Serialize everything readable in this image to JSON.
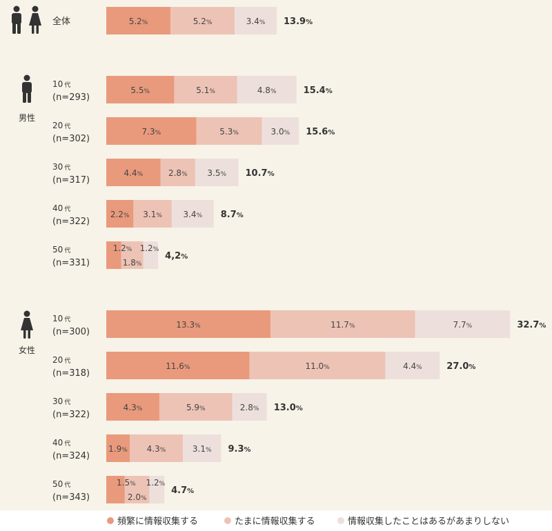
{
  "chart_data": {
    "type": "bar",
    "orientation": "horizontal",
    "stacked": true,
    "series": [
      {
        "name": "頻繁に情報収集する",
        "color": "#e99a7c"
      },
      {
        "name": "たまに情報収集する",
        "color": "#edc3b5"
      },
      {
        "name": "情報収集したことはあるがあまりしない",
        "color": "#ede0dc"
      }
    ],
    "groups": [
      {
        "label": "",
        "icon": "male-female-icon",
        "rows": [
          {
            "label": "全体",
            "n": "",
            "values": [
              5.2,
              5.2,
              3.4
            ],
            "total": "13.9"
          }
        ]
      },
      {
        "label": "男性",
        "icon": "male-icon",
        "rows": [
          {
            "label": "10代",
            "n": "(n=293)",
            "values": [
              5.5,
              5.1,
              4.8
            ],
            "total": "15.4"
          },
          {
            "label": "20代",
            "n": "(n=302)",
            "values": [
              7.3,
              5.3,
              3.0
            ],
            "total": "15.6"
          },
          {
            "label": "30代",
            "n": "(n=317)",
            "values": [
              4.4,
              2.8,
              3.5
            ],
            "total": "10.7"
          },
          {
            "label": "40代",
            "n": "(n=322)",
            "values": [
              2.2,
              3.1,
              3.4
            ],
            "total": "8.7"
          },
          {
            "label": "50代",
            "n": "(n=331)",
            "values": [
              1.2,
              1.8,
              1.2
            ],
            "total": "4,2"
          }
        ]
      },
      {
        "label": "女性",
        "icon": "female-icon",
        "rows": [
          {
            "label": "10代",
            "n": "(n=300)",
            "values": [
              13.3,
              11.7,
              7.7
            ],
            "total": "32.7"
          },
          {
            "label": "20代",
            "n": "(n=318)",
            "values": [
              11.6,
              11.0,
              4.4
            ],
            "total": "27.0"
          },
          {
            "label": "30代",
            "n": "(n=322)",
            "values": [
              4.3,
              5.9,
              2.8
            ],
            "total": "13.0"
          },
          {
            "label": "40代",
            "n": "(n=324)",
            "values": [
              1.9,
              4.3,
              3.1
            ],
            "total": "9.3"
          },
          {
            "label": "50代",
            "n": "(n=343)",
            "values": [
              1.5,
              2.0,
              1.2
            ],
            "total": "4.7"
          }
        ]
      }
    ],
    "unit": "%"
  }
}
